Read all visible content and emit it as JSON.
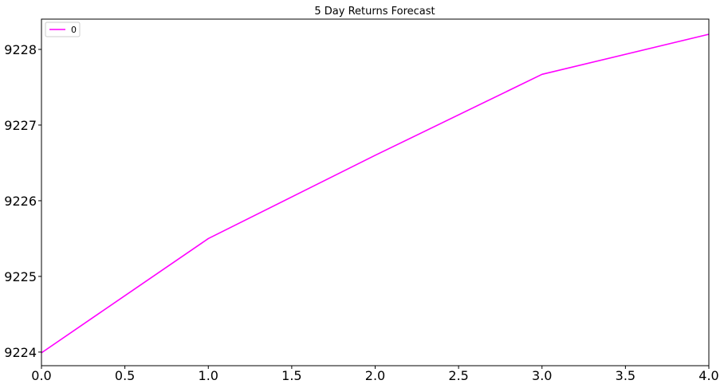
{
  "chart_data": {
    "type": "line",
    "title": "5 Day Returns Forecast",
    "xlabel": "",
    "ylabel": "",
    "xlim": [
      0.0,
      4.0
    ],
    "ylim": [
      9223.82,
      9228.4
    ],
    "x_ticks": [
      "0.0",
      "0.5",
      "1.0",
      "1.5",
      "2.0",
      "2.5",
      "3.0",
      "3.5",
      "4.0"
    ],
    "x_tick_values": [
      0.0,
      0.5,
      1.0,
      1.5,
      2.0,
      2.5,
      3.0,
      3.5,
      4.0
    ],
    "y_ticks": [
      "9224",
      "9225",
      "9226",
      "9227",
      "9228"
    ],
    "y_tick_values": [
      9224,
      9225,
      9226,
      9227,
      9228
    ],
    "grid": false,
    "legend_position": "top-left",
    "series": [
      {
        "name": "0",
        "color": "#ff00ff",
        "x": [
          0,
          1,
          2,
          3,
          4
        ],
        "values": [
          9223.99,
          9225.5,
          9226.6,
          9227.67,
          9228.2
        ]
      }
    ]
  }
}
